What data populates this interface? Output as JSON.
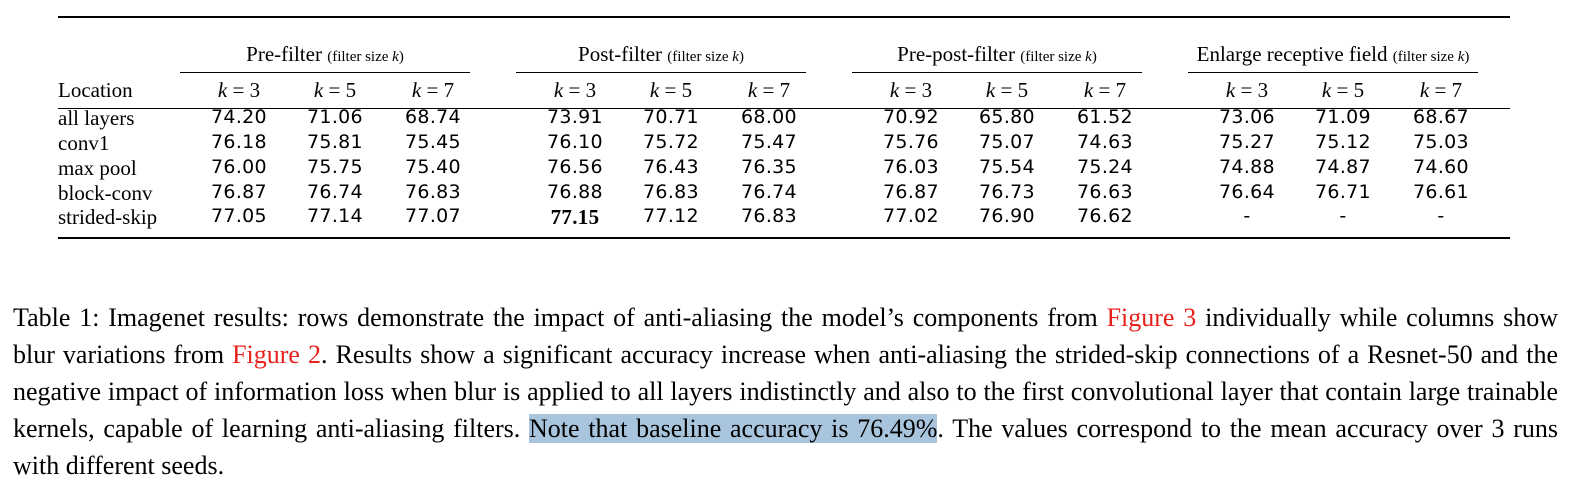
{
  "table": {
    "location_header": "Location",
    "groups": [
      {
        "title": "Pre-filter",
        "note": "(filter size k)"
      },
      {
        "title": "Post-filter",
        "note": "(filter size k)"
      },
      {
        "title": "Pre-post-filter",
        "note": "(filter size k)"
      },
      {
        "title": "Enlarge receptive field",
        "note": "(filter size k)"
      }
    ],
    "k_headers": [
      "k = 3",
      "k = 5",
      "k = 7"
    ],
    "rows": [
      {
        "label": "all layers",
        "values": [
          "74.20",
          "71.06",
          "68.74",
          "73.91",
          "70.71",
          "68.00",
          "70.92",
          "65.80",
          "61.52",
          "73.06",
          "71.09",
          "68.67"
        ]
      },
      {
        "label": "conv1",
        "values": [
          "76.18",
          "75.81",
          "75.45",
          "76.10",
          "75.72",
          "75.47",
          "75.76",
          "75.07",
          "74.63",
          "75.27",
          "75.12",
          "75.03"
        ]
      },
      {
        "label": "max pool",
        "values": [
          "76.00",
          "75.75",
          "75.40",
          "76.56",
          "76.43",
          "76.35",
          "76.03",
          "75.54",
          "75.24",
          "74.88",
          "74.87",
          "74.60"
        ]
      },
      {
        "label": "block-conv",
        "values": [
          "76.87",
          "76.74",
          "76.83",
          "76.88",
          "76.83",
          "76.74",
          "76.87",
          "76.73",
          "76.63",
          "76.64",
          "76.71",
          "76.61"
        ]
      },
      {
        "label": "strided-skip",
        "values": [
          "77.05",
          "77.14",
          "77.07",
          "77.15",
          "77.12",
          "76.83",
          "77.02",
          "76.90",
          "76.62",
          "-",
          "-",
          "-"
        ]
      }
    ],
    "bold_cell": {
      "row": 4,
      "col": 3
    }
  },
  "caption": {
    "p1": "Table 1:  Imagenet results: rows demonstrate the impact of anti-aliasing the model’s components from ",
    "ref1": "Figure 3",
    "p2": " individually while columns show blur variations from ",
    "ref2": "Figure 2",
    "p3": ". Results show a significant accuracy increase when anti-aliasing the strided-skip connections of a Resnet-50 and the negative impact of information loss when blur is applied to all layers indistinctly and also to the first convolutional layer that contain large trainable kernels, capable of learning anti-aliasing filters. ",
    "highlight": "Note that baseline accuracy is 76.49%",
    "p4": ". The values correspond to the mean accuracy over 3 runs with different seeds."
  },
  "colors": {
    "reference": "#e8201b",
    "highlight": "#a9c5de"
  }
}
